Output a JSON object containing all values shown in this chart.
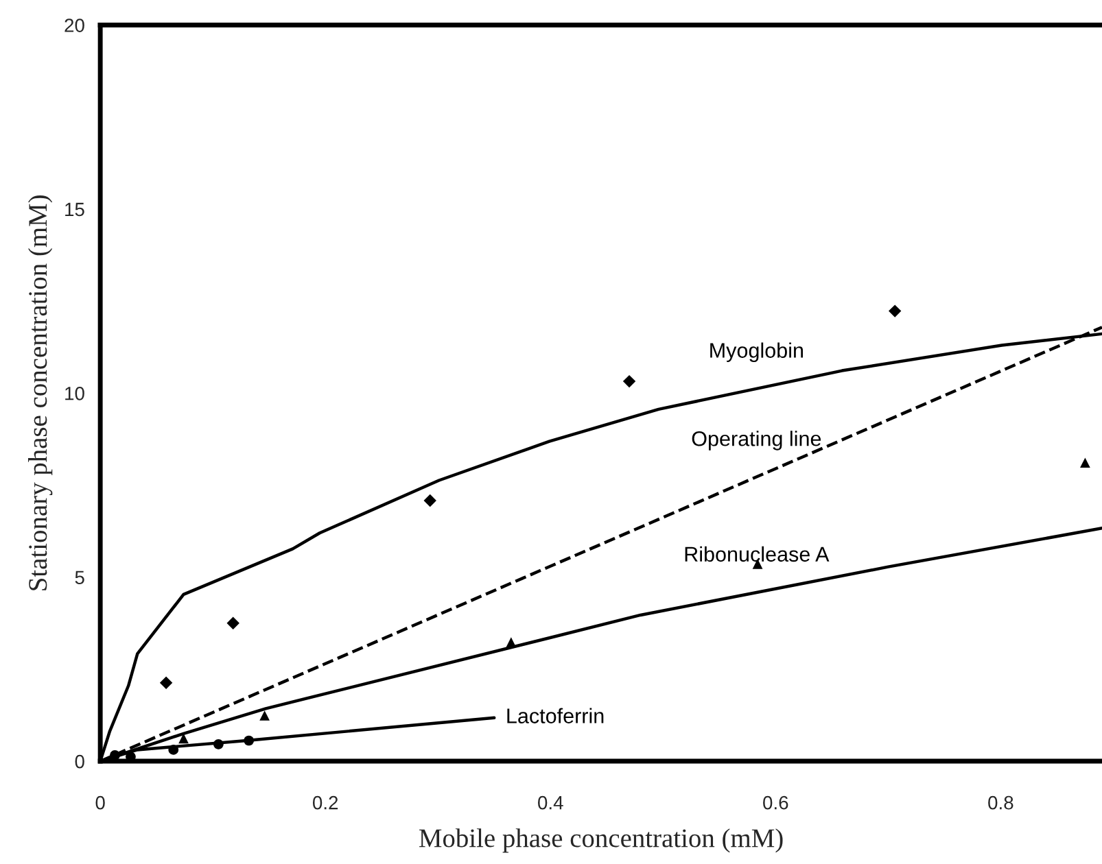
{
  "chart_data": {
    "type": "scatter",
    "xlabel": "Mobile phase concentration (mM)",
    "ylabel": "Stationary phase concentration (mM)",
    "xlim": [
      0,
      0.89
    ],
    "ylim": [
      0,
      20
    ],
    "xticks": [
      0,
      0.2,
      0.4,
      0.6,
      0.8
    ],
    "yticks": [
      0,
      5,
      10,
      15,
      20
    ],
    "grid": false,
    "legend": false,
    "series": [
      {
        "marker": "diamond",
        "color": "#000000",
        "x": [
          0.0585,
          0.118,
          0.293,
          0.47,
          0.706
        ],
        "values": [
          2.13,
          3.75,
          7.08,
          10.32,
          12.23
        ]
      },
      {
        "marker": "triangle",
        "color": "#000000",
        "x": [
          0.074,
          0.146,
          0.365,
          0.584,
          0.875
        ],
        "values": [
          0.62,
          1.24,
          3.23,
          5.36,
          8.11
        ]
      },
      {
        "marker": "circle",
        "color": "#000000",
        "x": [
          0.013,
          0.027,
          0.065,
          0.105,
          0.132
        ],
        "values": [
          0.16,
          0.12,
          0.31,
          0.46,
          0.56
        ]
      },
      {
        "type": "line",
        "name": "Myoglobin",
        "marker": "none",
        "line_style": "solid",
        "color": "#000000",
        "x": [
          0,
          0.0085,
          0.025,
          0.033,
          0.074,
          0.171,
          0.195,
          0.301,
          0.399,
          0.496,
          0.659,
          0.801,
          0.89
        ],
        "values": [
          0,
          0.82,
          2.05,
          2.92,
          4.53,
          5.77,
          6.2,
          7.63,
          8.69,
          9.56,
          10.61,
          11.3,
          11.61
        ]
      },
      {
        "type": "line",
        "name": "Operating line",
        "marker": "none",
        "line_style": "dashed",
        "color": "#000000",
        "x": [
          0,
          0.89
        ],
        "values": [
          0,
          11.79
        ]
      },
      {
        "type": "line",
        "name": "Ribonuclease A",
        "marker": "none",
        "line_style": "solid",
        "color": "#000000",
        "x": [
          0,
          0.074,
          0.147,
          0.399,
          0.48,
          0.7,
          0.89
        ],
        "values": [
          0,
          0.75,
          1.43,
          3.35,
          3.97,
          5.28,
          6.33
        ]
      },
      {
        "type": "line",
        "name": "Lactoferrin",
        "marker": "none",
        "line_style": "solid",
        "color": "#000000",
        "x": [
          0,
          0.033,
          0.13,
          0.35
        ],
        "values": [
          0,
          0.31,
          0.56,
          1.18
        ]
      }
    ]
  }
}
